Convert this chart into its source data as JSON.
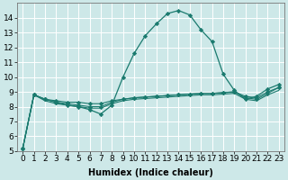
{
  "xlabel": "Humidex (Indice chaleur)",
  "bg_color": "#cde8e8",
  "grid_color": "#b8d8d8",
  "line_color": "#1a7a6e",
  "xlim": [
    -0.5,
    23.5
  ],
  "ylim": [
    5,
    15.0
  ],
  "yticks": [
    5,
    6,
    7,
    8,
    9,
    10,
    11,
    12,
    13,
    14
  ],
  "xticks": [
    0,
    1,
    2,
    3,
    4,
    5,
    6,
    7,
    8,
    9,
    10,
    11,
    12,
    13,
    14,
    15,
    16,
    17,
    18,
    19,
    20,
    21,
    22,
    23
  ],
  "series": [
    [
      5.2,
      8.8,
      8.5,
      8.3,
      8.1,
      8.0,
      7.8,
      7.5,
      8.1,
      10.0,
      11.6,
      12.8,
      13.6,
      14.3,
      14.5,
      14.2,
      13.2,
      12.4,
      10.2,
      9.1,
      8.5,
      8.7,
      9.2,
      9.5
    ],
    [
      5.2,
      8.8,
      8.5,
      8.3,
      8.2,
      8.1,
      8.0,
      8.0,
      8.3,
      8.5,
      8.6,
      8.65,
      8.7,
      8.75,
      8.8,
      8.85,
      8.9,
      8.9,
      8.95,
      9.0,
      8.6,
      8.5,
      8.9,
      9.3
    ],
    [
      5.2,
      8.8,
      8.4,
      8.2,
      8.1,
      8.0,
      7.9,
      7.9,
      8.2,
      8.4,
      8.5,
      8.55,
      8.6,
      8.65,
      8.7,
      8.75,
      8.8,
      8.8,
      8.85,
      8.9,
      8.5,
      8.4,
      8.8,
      9.1
    ],
    [
      5.2,
      8.8,
      8.5,
      8.4,
      8.3,
      8.3,
      8.2,
      8.2,
      8.4,
      8.5,
      8.6,
      8.65,
      8.7,
      8.75,
      8.8,
      8.85,
      8.9,
      8.9,
      8.95,
      9.0,
      8.7,
      8.6,
      9.0,
      9.3
    ]
  ],
  "markers_on": [
    0,
    1,
    3
  ],
  "font_size_label": 7,
  "font_size_tick": 6.5
}
